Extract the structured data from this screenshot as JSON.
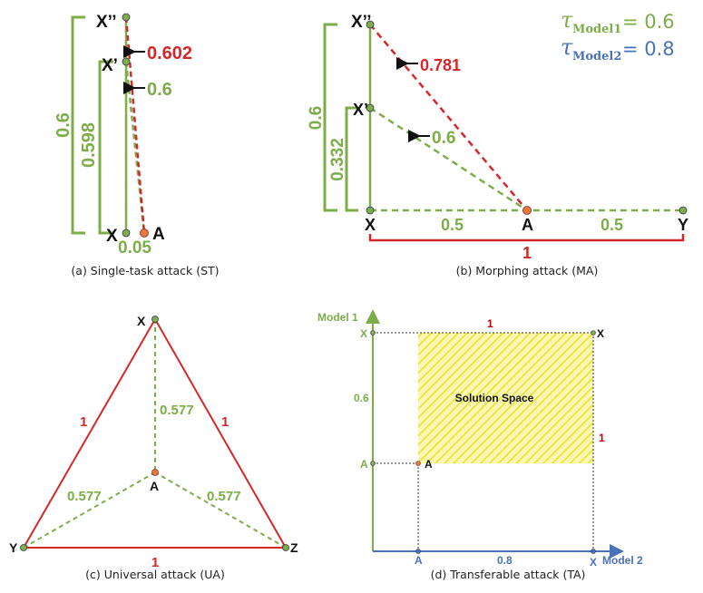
{
  "colors": {
    "green": "#7cad49",
    "red": "#d62728",
    "darkred": "#c00000",
    "blue": "#4a72b8",
    "orange": "#e8773a",
    "black": "#111111",
    "yellow": "#f3ee4f"
  },
  "legend": {
    "tau_symbol": "τ",
    "model1_sub": "Model1",
    "model1_val": "= 0.6",
    "model2_sub": "Model2",
    "model2_val": "= 0.8"
  },
  "panel_a": {
    "caption": "(a) Single-task attack (ST)",
    "label_xpp": "X’’",
    "label_xp": "X’",
    "label_x": "X",
    "label_a": "A",
    "dist_red": "0.602",
    "dist_green": "0.6",
    "bracket_outer": "0.6",
    "bracket_inner": "0.598",
    "base": "0.05"
  },
  "panel_b": {
    "caption": "(b) Morphing attack (MA)",
    "label_xpp": "X’’",
    "label_xp": "X’",
    "label_x": "X",
    "label_a": "A",
    "label_y": "Y",
    "dist_red": "0.781",
    "dist_green": "0.6",
    "bracket_outer": "0.6",
    "bracket_inner": "0.332",
    "seg_left": "0.5",
    "seg_right": "0.5",
    "total": "1"
  },
  "panel_c": {
    "caption": "(c) Universal attack (UA)",
    "label_x": "X",
    "label_y": "Y",
    "label_z": "Z",
    "label_a": "A",
    "side_left": "1",
    "side_right": "1",
    "side_bottom": "1",
    "d_top": "0.577",
    "d_left": "0.577",
    "d_right": "0.577"
  },
  "panel_d": {
    "caption": "(d) Transferable attack (TA)",
    "y_axis": "Model 1",
    "x_axis": "Model 2",
    "y_tick_x": "X",
    "y_tick_a": "A",
    "x_tick_a": "A",
    "x_tick_x": "X",
    "point_x": "X",
    "point_a": "A",
    "dist_y": "0.6",
    "dist_x": "0.8",
    "top_len": "1",
    "right_len": "1",
    "region": "Solution Space"
  }
}
